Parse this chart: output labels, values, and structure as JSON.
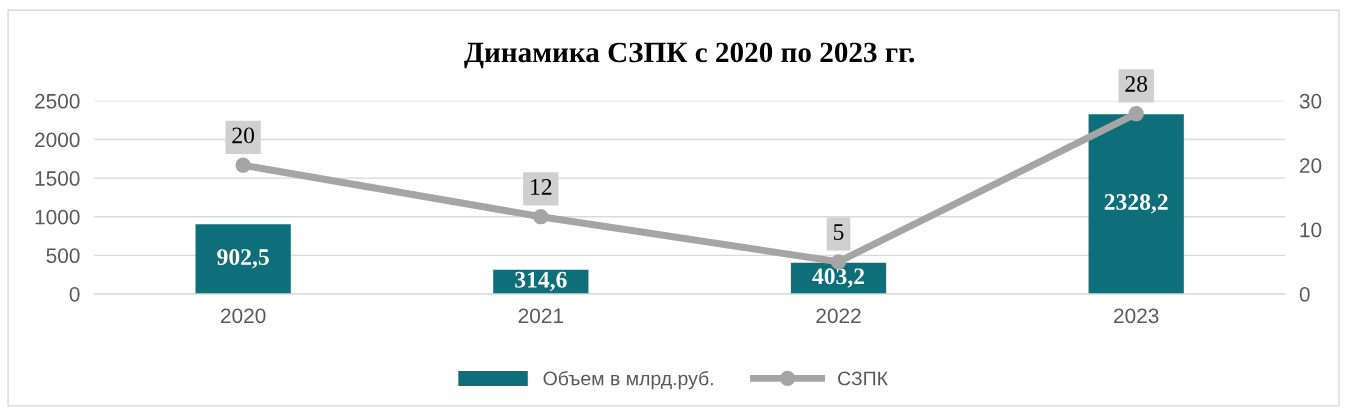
{
  "chart_data": {
    "type": "bar",
    "title": "Динамика СЗПК с 2020 по 2023 гг.",
    "categories": [
      "2020",
      "2021",
      "2022",
      "2023"
    ],
    "series": [
      {
        "name": "Объем в млрд.руб.",
        "color": "#0e6e7a",
        "values": [
          902.5,
          314.6,
          403.2,
          2328.2
        ],
        "value_labels": [
          "902,5",
          "314,6",
          "403,2",
          "2328,2"
        ]
      },
      {
        "name": "СЗПК",
        "type": "line",
        "axis": "y2",
        "color": "#a5a5a5",
        "marker": "circle",
        "values": [
          20,
          12,
          5,
          28
        ],
        "value_labels": [
          "20",
          "12",
          "5",
          "28"
        ]
      }
    ],
    "ylim": [
      0,
      2500
    ],
    "yticks": [
      0,
      500,
      1000,
      1500,
      2000,
      2500
    ],
    "y2lim": [
      0,
      30
    ],
    "y2ticks": [
      0,
      10,
      20,
      30
    ],
    "grid": "y",
    "legend": "bottom"
  }
}
